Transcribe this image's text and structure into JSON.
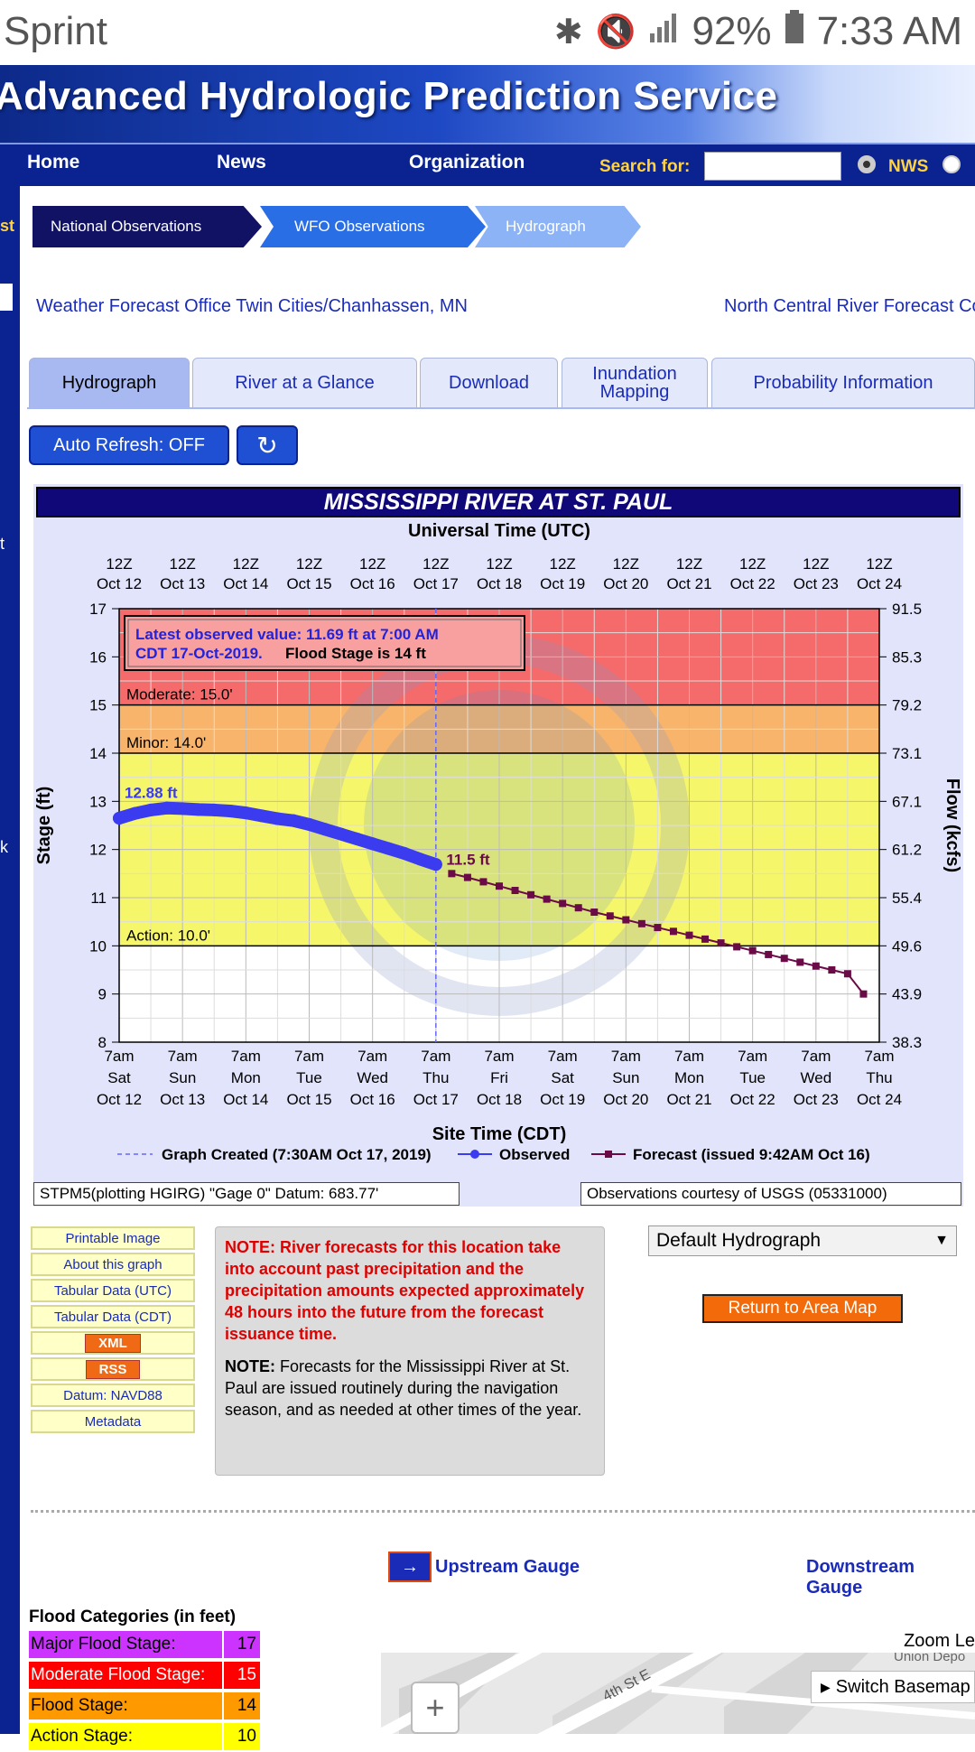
{
  "status_bar": {
    "carrier": "Sprint",
    "battery": "92%",
    "time": "7:33 AM"
  },
  "header": {
    "title": "Advanced Hydrologic Prediction Service"
  },
  "nav": {
    "home": "Home",
    "news": "News",
    "organization": "Organization",
    "search_label": "Search for:",
    "nws": "NWS"
  },
  "left_strip": {
    "text1": "st",
    "text2": "t",
    "text3": "k"
  },
  "breadcrumb": [
    "National Observations",
    "WFO Observations",
    "Hydrograph"
  ],
  "offices": {
    "wfo": "Weather Forecast Office Twin Cities/Chanhassen, MN",
    "rfc": "North Central River Forecast Co"
  },
  "tabs": [
    "Hydrograph",
    "River at a Glance",
    "Download",
    "Inundation Mapping",
    "Probability Information"
  ],
  "controls": {
    "auto_refresh": "Auto Refresh: OFF"
  },
  "chart_data": {
    "type": "line",
    "title": "MISSISSIPPI RIVER AT ST. PAUL",
    "top_axis_title": "Universal Time (UTC)",
    "top_ticks": [
      "12Z Oct 12",
      "12Z Oct 13",
      "12Z Oct 14",
      "12Z Oct 15",
      "12Z Oct 16",
      "12Z Oct 17",
      "12Z Oct 18",
      "12Z Oct 19",
      "12Z Oct 20",
      "12Z Oct 21",
      "12Z Oct 22",
      "12Z Oct 23",
      "12Z Oct 24"
    ],
    "bottom_ticks": [
      "7am Sat Oct 12",
      "7am Sun Oct 13",
      "7am Mon Oct 14",
      "7am Tue Oct 15",
      "7am Wed Oct 16",
      "7am Thu Oct 17",
      "7am Fri Oct 18",
      "7am Sat Oct 19",
      "7am Sun Oct 20",
      "7am Mon Oct 21",
      "7am Tue Oct 22",
      "7am Wed Oct 23",
      "7am Thu Oct 24"
    ],
    "xlabel": "Site Time (CDT)",
    "ylabel": "Stage (ft)",
    "y2label": "Flow (kcfs)",
    "ylim": [
      8,
      17
    ],
    "xlim_days": [
      0,
      12
    ],
    "yticks": [
      8,
      9,
      10,
      11,
      12,
      13,
      14,
      15,
      16,
      17
    ],
    "y2ticks": [
      "38.3",
      "43.9",
      "49.6",
      "55.4",
      "61.2",
      "67.1",
      "73.1",
      "79.2",
      "85.3",
      "91.5"
    ],
    "grid": true,
    "bands": [
      {
        "name": "Moderate",
        "label": "Moderate: 15.0'",
        "from": 15,
        "to": 17,
        "color": "#f56a6a"
      },
      {
        "name": "Minor",
        "label": "Minor: 14.0'",
        "from": 14,
        "to": 15,
        "color": "#f8b46a"
      },
      {
        "name": "Action",
        "label": "Action: 10.0'",
        "from": 10,
        "to": 14,
        "color": "#f6f66a"
      }
    ],
    "latest_box": {
      "line1": "Latest observed value: 11.69 ft at 7:00 AM",
      "line2": "CDT 17-Oct-2019.",
      "flood": "Flood Stage is 14 ft"
    },
    "graph_created_day": 5.0,
    "observed": {
      "name": "Observed",
      "color": "#3b3bf0",
      "x": [
        0,
        0.25,
        0.5,
        0.75,
        1.0,
        1.25,
        1.5,
        1.75,
        2.0,
        2.25,
        2.5,
        2.75,
        3.0,
        3.25,
        3.5,
        3.75,
        4.0,
        4.25,
        4.5,
        4.75,
        5.0
      ],
      "y": [
        12.65,
        12.75,
        12.82,
        12.86,
        12.85,
        12.83,
        12.82,
        12.8,
        12.76,
        12.7,
        12.64,
        12.6,
        12.52,
        12.42,
        12.32,
        12.22,
        12.12,
        12.02,
        11.92,
        11.8,
        11.69
      ],
      "max_label": "12.88 ft"
    },
    "forecast": {
      "name": "Forecast (issued 9:42AM Oct 16)",
      "color": "#6a0a46",
      "x": [
        5.25,
        5.5,
        5.75,
        6.0,
        6.25,
        6.5,
        6.75,
        7.0,
        7.25,
        7.5,
        7.75,
        8.0,
        8.25,
        8.5,
        8.75,
        9.0,
        9.25,
        9.5,
        9.75,
        10.0,
        10.25,
        10.5,
        10.75,
        11.0,
        11.25,
        11.5,
        11.75
      ],
      "y": [
        11.5,
        11.42,
        11.33,
        11.24,
        11.15,
        11.06,
        10.97,
        10.88,
        10.79,
        10.7,
        10.62,
        10.54,
        10.46,
        10.38,
        10.3,
        10.22,
        10.14,
        10.06,
        9.98,
        9.9,
        9.82,
        9.74,
        9.66,
        9.58,
        9.5,
        9.42,
        9.0
      ],
      "first_label": "11.5 ft"
    },
    "legend": {
      "created": "Graph Created (7:30AM Oct 17, 2019)",
      "observed": "Observed",
      "forecast": "Forecast (issued 9:42AM Oct 16)"
    }
  },
  "chart_footer": {
    "datum": "STPM5(plotting HGIRG) \"Gage 0\" Datum: 683.77'",
    "courtesy": "Observations courtesy of USGS (05331000)"
  },
  "side_links": [
    "Printable Image",
    "About this graph",
    "Tabular Data (UTC)",
    "Tabular Data (CDT)",
    "XML",
    "RSS",
    "Datum: NAVD88",
    "Metadata"
  ],
  "notes": {
    "note1_label": "NOTE:",
    "note1": "River forecasts for this location take into account past precipitation and the precipitation amounts expected approximately 48 hours into the future from the forecast issuance time.",
    "note2_label": "NOTE:",
    "note2": "Forecasts for the Mississippi River at St. Paul are issued routinely during the navigation season, and as needed at other times of the year."
  },
  "hydrograph_select": "Default Hydrograph",
  "return_button": "Return to Area Map",
  "gauges": {
    "upstream": "Upstream Gauge",
    "downstream": "Downstream Gauge"
  },
  "flood_categories": {
    "title": "Flood Categories (in feet)",
    "rows": [
      {
        "label": "Major Flood Stage:",
        "value": "17",
        "color": "#cc33ff"
      },
      {
        "label": "Moderate Flood Stage:",
        "value": "15",
        "color": "#ff0000"
      },
      {
        "label": "Flood Stage:",
        "value": "14",
        "color": "#ff9900"
      },
      {
        "label": "Action Stage:",
        "value": "10",
        "color": "#ffff00"
      }
    ]
  },
  "map": {
    "zoom_label": "Zoom Le",
    "switch_basemap": "Switch Basemap",
    "street": "4th St E",
    "place": "Union Depo",
    "zoom_in": "+"
  }
}
